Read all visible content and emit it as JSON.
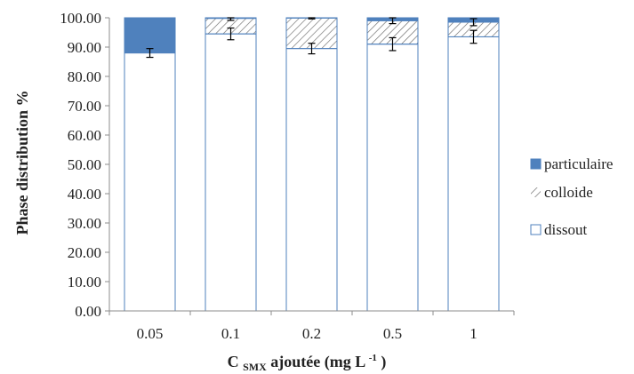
{
  "chart_data": {
    "type": "bar",
    "stacked": true,
    "percent_stacked": true,
    "categories": [
      "0.05",
      "0.1",
      "0.2",
      "0.5",
      "1"
    ],
    "series": [
      {
        "name": "dissout",
        "values": [
          88.0,
          94.5,
          89.5,
          91.0,
          93.5
        ],
        "fill": "#ffffff",
        "stroke": "#4f81bd",
        "error": [
          1.5,
          2.0,
          1.8,
          2.2,
          2.2
        ]
      },
      {
        "name": "colloide",
        "values": [
          0.0,
          5.3,
          10.4,
          8.0,
          5.0
        ],
        "fill": "hatch",
        "stroke": "#4f81bd",
        "error": [
          0.0,
          0.7,
          0.3,
          1.0,
          1.2
        ]
      },
      {
        "name": "particulaire",
        "values": [
          12.0,
          0.2,
          0.1,
          1.0,
          1.5
        ],
        "fill": "#4f81bd",
        "stroke": "#4f81bd",
        "error": [
          0.0,
          0.0,
          0.0,
          0.0,
          0.0
        ]
      }
    ],
    "ylim": [
      0,
      100
    ],
    "yticks": [
      "0.00",
      "10.00",
      "20.00",
      "30.00",
      "40.00",
      "50.00",
      "60.00",
      "70.00",
      "80.00",
      "90.00",
      "100.00"
    ],
    "ytick_values": [
      0,
      10,
      20,
      30,
      40,
      50,
      60,
      70,
      80,
      90,
      100
    ],
    "ylabel": "Phase distribution %",
    "xlabel": {
      "main": "C",
      "sub": "SMX",
      "rest": " ajoutée (mg L",
      "sup": "-1",
      "close": ")"
    },
    "legend": [
      "particulaire",
      "colloide",
      "dissout"
    ],
    "legend_position": "right",
    "grid": false,
    "colors": {
      "accent": "#4f81bd",
      "axis": "#8c8c8c",
      "hatch": "#6b6b6b"
    }
  }
}
